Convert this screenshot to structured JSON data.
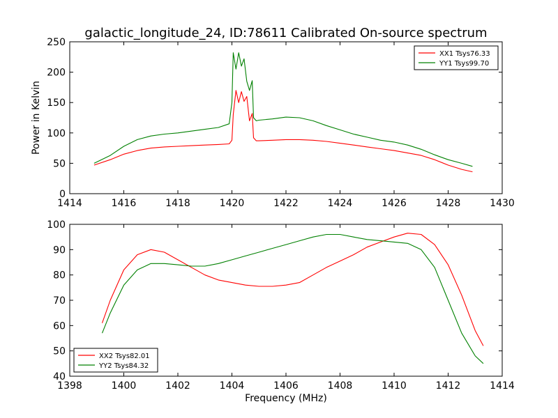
{
  "chart_data": [
    {
      "type": "line",
      "title": "galactic_longitude_24, ID:78611 Calibrated On-source spectrum",
      "xlabel": "",
      "ylabel": "Power in Kelvin",
      "xlim": [
        1414,
        1430
      ],
      "ylim": [
        0,
        250
      ],
      "xticks": [
        "1414",
        "1416",
        "1418",
        "1420",
        "1422",
        "1424",
        "1426",
        "1428",
        "1430"
      ],
      "yticks": [
        "0",
        "50",
        "100",
        "150",
        "200",
        "250"
      ],
      "legend_position": "top-right",
      "grid": false,
      "series": [
        {
          "name": "XX1 Tsys76.33",
          "color": "#ff0000",
          "x": [
            1414.9,
            1415.5,
            1416,
            1416.5,
            1417,
            1417.5,
            1418,
            1418.5,
            1419,
            1419.5,
            1419.9,
            1420.0,
            1420.05,
            1420.15,
            1420.25,
            1420.35,
            1420.45,
            1420.55,
            1420.65,
            1420.75,
            1420.8,
            1420.9,
            1421.0,
            1421.5,
            1422,
            1422.5,
            1423,
            1423.5,
            1424,
            1424.5,
            1425,
            1425.5,
            1426,
            1426.5,
            1427,
            1427.5,
            1428,
            1428.5,
            1428.9
          ],
          "values": [
            47,
            56,
            65,
            71,
            75,
            77,
            78,
            79,
            80,
            81,
            82,
            88,
            130,
            170,
            150,
            168,
            152,
            160,
            120,
            132,
            92,
            87,
            87,
            88,
            89,
            89,
            88,
            86,
            83,
            80,
            77,
            74,
            71,
            67,
            63,
            56,
            47,
            40,
            36
          ]
        },
        {
          "name": "YY1 Tsys99.70",
          "color": "#008000",
          "x": [
            1414.9,
            1415.5,
            1416,
            1416.5,
            1417,
            1417.5,
            1418,
            1418.5,
            1419,
            1419.5,
            1419.9,
            1420.0,
            1420.05,
            1420.15,
            1420.25,
            1420.35,
            1420.45,
            1420.55,
            1420.65,
            1420.75,
            1420.8,
            1420.9,
            1421.0,
            1421.5,
            1422,
            1422.5,
            1423,
            1423.5,
            1424,
            1424.5,
            1425,
            1425.5,
            1426,
            1426.5,
            1427,
            1427.5,
            1428,
            1428.5,
            1428.9
          ],
          "values": [
            50,
            63,
            78,
            89,
            95,
            98,
            100,
            103,
            106,
            109,
            115,
            150,
            232,
            205,
            232,
            210,
            222,
            185,
            170,
            186,
            125,
            120,
            121,
            123,
            126,
            125,
            120,
            112,
            105,
            98,
            93,
            88,
            85,
            80,
            73,
            64,
            56,
            50,
            45
          ]
        }
      ]
    },
    {
      "type": "line",
      "title": "",
      "xlabel": "Frequency (MHz)",
      "ylabel": "",
      "xlim": [
        1398,
        1414
      ],
      "ylim": [
        40,
        100
      ],
      "xticks": [
        "1398",
        "1400",
        "1402",
        "1404",
        "1406",
        "1408",
        "1410",
        "1412",
        "1414"
      ],
      "yticks": [
        "40",
        "50",
        "60",
        "70",
        "80",
        "90",
        "100"
      ],
      "legend_position": "bottom-left",
      "grid": false,
      "series": [
        {
          "name": "XX2 Tsys82.01",
          "color": "#ff0000",
          "x": [
            1399.2,
            1399.5,
            1400,
            1400.5,
            1401,
            1401.5,
            1402,
            1402.5,
            1403,
            1403.5,
            1404,
            1404.5,
            1405,
            1405.5,
            1406,
            1406.5,
            1407,
            1407.5,
            1408,
            1408.5,
            1409,
            1409.5,
            1410,
            1410.5,
            1411,
            1411.5,
            1412,
            1412.5,
            1413,
            1413.3
          ],
          "values": [
            61,
            70,
            82,
            88,
            90,
            89,
            86,
            83,
            80,
            78,
            77,
            76,
            75.5,
            75.5,
            76,
            77,
            80,
            83,
            85.5,
            88,
            91,
            93,
            95,
            96.5,
            96,
            92,
            84,
            72,
            58,
            52
          ]
        },
        {
          "name": "YY2 Tsys84.32",
          "color": "#008000",
          "x": [
            1399.2,
            1399.5,
            1400,
            1400.5,
            1401,
            1401.5,
            1402,
            1402.5,
            1403,
            1403.5,
            1404,
            1404.5,
            1405,
            1405.5,
            1406,
            1406.5,
            1407,
            1407.5,
            1408,
            1408.5,
            1409,
            1409.5,
            1410,
            1410.5,
            1411,
            1411.5,
            1412,
            1412.5,
            1413,
            1413.3
          ],
          "values": [
            57,
            65,
            76,
            82,
            84.5,
            84.5,
            84,
            83.5,
            83.5,
            84.5,
            86,
            87.5,
            89,
            90.5,
            92,
            93.5,
            95,
            96,
            96,
            95,
            94,
            93.5,
            93,
            92.5,
            90,
            83,
            70,
            57,
            48,
            45
          ]
        }
      ]
    }
  ]
}
